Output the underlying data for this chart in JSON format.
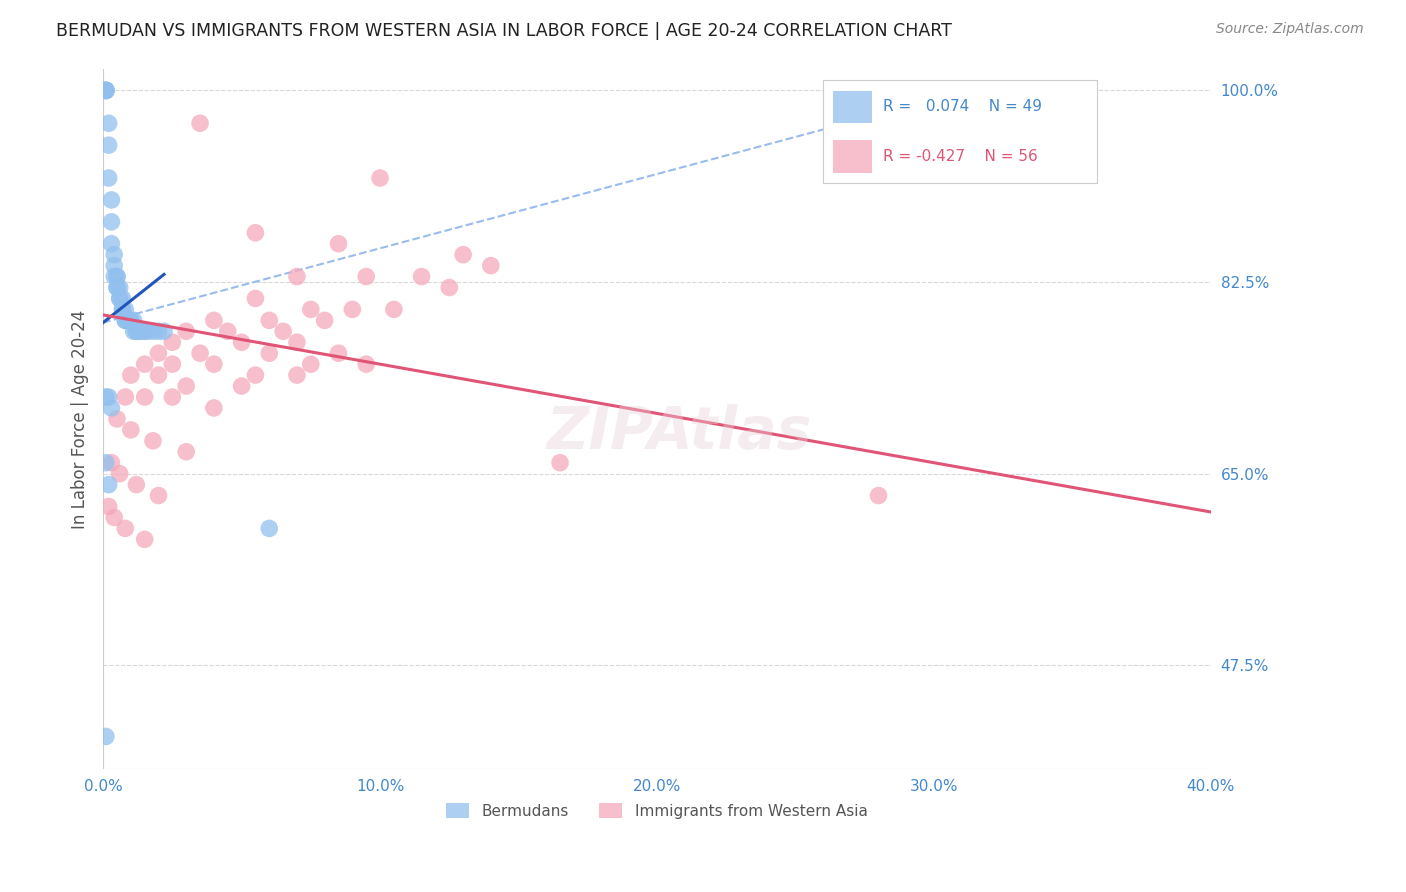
{
  "title": "BERMUDAN VS IMMIGRANTS FROM WESTERN ASIA IN LABOR FORCE | AGE 20-24 CORRELATION CHART",
  "source": "Source: ZipAtlas.com",
  "ylabel": "In Labor Force | Age 20-24",
  "xlim": [
    0.0,
    0.4
  ],
  "ylim": [
    0.38,
    1.02
  ],
  "ytick_labels_right": [
    "100.0%",
    "82.5%",
    "65.0%",
    "47.5%"
  ],
  "ytick_positions_right": [
    1.0,
    0.825,
    0.65,
    0.475
  ],
  "xtick_labels": [
    "0.0%",
    "10.0%",
    "20.0%",
    "30.0%",
    "40.0%"
  ],
  "xtick_positions": [
    0.0,
    0.1,
    0.2,
    0.3,
    0.4
  ],
  "grid_color": "#d8d8d8",
  "background_color": "#ffffff",
  "blue_color": "#92C0EE",
  "pink_color": "#F5A8BA",
  "blue_line_color": "#2255BB",
  "pink_line_color": "#E05575",
  "dashed_line_color": "#99BBEE",
  "legend_R_blue": "0.074",
  "legend_N_blue": "49",
  "legend_R_pink": "-0.427",
  "legend_N_pink": "56",
  "title_color": "#222222",
  "axis_label_color": "#555555",
  "tick_label_color": "#4488CC",
  "source_color": "#888888",
  "bermudans_x": [
    0.001,
    0.001,
    0.001,
    0.001,
    0.001,
    0.002,
    0.002,
    0.002,
    0.003,
    0.003,
    0.003,
    0.004,
    0.004,
    0.004,
    0.005,
    0.005,
    0.005,
    0.005,
    0.006,
    0.006,
    0.006,
    0.007,
    0.007,
    0.007,
    0.008,
    0.008,
    0.008,
    0.009,
    0.009,
    0.01,
    0.01,
    0.011,
    0.011,
    0.012,
    0.012,
    0.013,
    0.014,
    0.015,
    0.016,
    0.018,
    0.02,
    0.022,
    0.001,
    0.002,
    0.003,
    0.001,
    0.002,
    0.06,
    0.001
  ],
  "bermudans_y": [
    1.0,
    1.0,
    1.0,
    1.0,
    1.0,
    0.97,
    0.95,
    0.92,
    0.9,
    0.88,
    0.86,
    0.85,
    0.84,
    0.83,
    0.83,
    0.83,
    0.82,
    0.82,
    0.82,
    0.81,
    0.81,
    0.81,
    0.8,
    0.8,
    0.8,
    0.79,
    0.79,
    0.79,
    0.79,
    0.79,
    0.79,
    0.79,
    0.78,
    0.78,
    0.78,
    0.78,
    0.78,
    0.78,
    0.78,
    0.78,
    0.78,
    0.78,
    0.72,
    0.72,
    0.71,
    0.66,
    0.64,
    0.6,
    0.41
  ],
  "western_asia_x": [
    0.035,
    0.1,
    0.055,
    0.085,
    0.13,
    0.14,
    0.07,
    0.095,
    0.115,
    0.125,
    0.055,
    0.075,
    0.09,
    0.105,
    0.04,
    0.06,
    0.08,
    0.03,
    0.045,
    0.065,
    0.025,
    0.05,
    0.07,
    0.085,
    0.02,
    0.035,
    0.06,
    0.075,
    0.095,
    0.015,
    0.025,
    0.04,
    0.055,
    0.07,
    0.01,
    0.02,
    0.03,
    0.05,
    0.008,
    0.015,
    0.025,
    0.04,
    0.005,
    0.01,
    0.018,
    0.03,
    0.003,
    0.006,
    0.012,
    0.02,
    0.002,
    0.004,
    0.008,
    0.015,
    0.165,
    0.28
  ],
  "western_asia_y": [
    0.97,
    0.92,
    0.87,
    0.86,
    0.85,
    0.84,
    0.83,
    0.83,
    0.83,
    0.82,
    0.81,
    0.8,
    0.8,
    0.8,
    0.79,
    0.79,
    0.79,
    0.78,
    0.78,
    0.78,
    0.77,
    0.77,
    0.77,
    0.76,
    0.76,
    0.76,
    0.76,
    0.75,
    0.75,
    0.75,
    0.75,
    0.75,
    0.74,
    0.74,
    0.74,
    0.74,
    0.73,
    0.73,
    0.72,
    0.72,
    0.72,
    0.71,
    0.7,
    0.69,
    0.68,
    0.67,
    0.66,
    0.65,
    0.64,
    0.63,
    0.62,
    0.61,
    0.6,
    0.59,
    0.66,
    0.63
  ],
  "blue_trendline_x": [
    0.0,
    0.022
  ],
  "blue_trendline_y": [
    0.788,
    0.832
  ],
  "pink_trendline_x": [
    0.0,
    0.4
  ],
  "pink_trendline_y": [
    0.795,
    0.615
  ],
  "dashed_trendline_x": [
    0.0,
    0.32
  ],
  "dashed_trendline_y": [
    0.788,
    1.005
  ]
}
